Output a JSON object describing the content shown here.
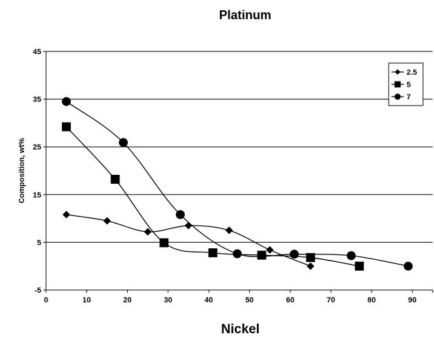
{
  "chart_data": {
    "type": "line",
    "title": "Platinum",
    "xlabel": "Nickel",
    "ylabel": "Composition, wt%",
    "xlim": [
      0,
      95
    ],
    "ylim": [
      -5,
      45
    ],
    "xticks": [
      0,
      10,
      20,
      30,
      40,
      50,
      60,
      70,
      80,
      90
    ],
    "yticks": [
      -5,
      5,
      15,
      25,
      35,
      45
    ],
    "grid": "horizontal",
    "legend_position": "top-right",
    "smooth": true,
    "series": [
      {
        "name": "2.5",
        "marker": "diamond",
        "color": "#000000",
        "x": [
          5,
          15,
          25,
          35,
          45,
          55,
          65
        ],
        "y": [
          10.8,
          9.5,
          7.2,
          8.5,
          7.5,
          3.4,
          0.0
        ]
      },
      {
        "name": "5",
        "marker": "square",
        "color": "#000000",
        "x": [
          5,
          17,
          29,
          41,
          53,
          65,
          77
        ],
        "y": [
          29.2,
          18.2,
          4.9,
          2.8,
          2.3,
          1.8,
          0.0
        ]
      },
      {
        "name": "7",
        "marker": "circle",
        "color": "#000000",
        "x": [
          5,
          19,
          33,
          47,
          61,
          75,
          89
        ],
        "y": [
          34.5,
          25.9,
          10.8,
          2.6,
          2.5,
          2.2,
          0.0
        ]
      }
    ]
  }
}
